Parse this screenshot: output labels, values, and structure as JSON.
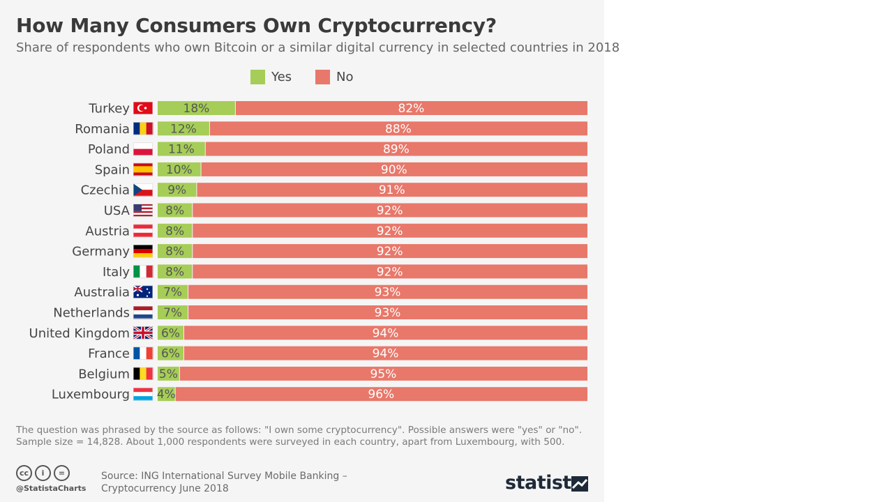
{
  "title": "How Many Consumers Own Cryptocurrency?",
  "subtitle": "Share of respondents who own Bitcoin or a similar digital currency in selected countries in 2018",
  "colors": {
    "yes": "#a6cd57",
    "no": "#e8786a",
    "label": "#454545",
    "bar_text": "#555555",
    "bar_text_no": "#ffffff"
  },
  "chart_data": {
    "type": "bar",
    "orientation": "horizontal",
    "stacked": true,
    "categories": [
      "Turkey",
      "Romania",
      "Poland",
      "Spain",
      "Czechia",
      "USA",
      "Austria",
      "Germany",
      "Italy",
      "Australia",
      "Netherlands",
      "United Kingdom",
      "France",
      "Belgium",
      "Luxembourg"
    ],
    "series": [
      {
        "name": "Yes",
        "values": [
          18,
          12,
          11,
          10,
          9,
          8,
          8,
          8,
          8,
          7,
          7,
          6,
          6,
          5,
          4
        ]
      },
      {
        "name": "No",
        "values": [
          82,
          88,
          89,
          90,
          91,
          92,
          92,
          92,
          92,
          93,
          93,
          94,
          94,
          95,
          96
        ]
      }
    ],
    "value_suffix": "%",
    "legend": "top-center",
    "xlim": [
      0,
      100
    ],
    "grid": false
  },
  "notes": [
    "The question was phrased by the source as follows: \"I own some cryptocurrency\". Possible answers were \"yes\" or \"no\".",
    "Sample size = 14,828. About 1,000 respondents were surveyed in each country, apart from Luxembourg, with 500."
  ],
  "source": [
    "Source: ING International Survey Mobile Banking –",
    "Cryptocurrency June 2018"
  ],
  "footer": {
    "handle": "@StatistaCharts",
    "license_icons": [
      "cc-icon",
      "by-icon",
      "nd-icon"
    ],
    "license_glyphs": [
      "cc",
      "i",
      "="
    ],
    "brand": "statista"
  }
}
